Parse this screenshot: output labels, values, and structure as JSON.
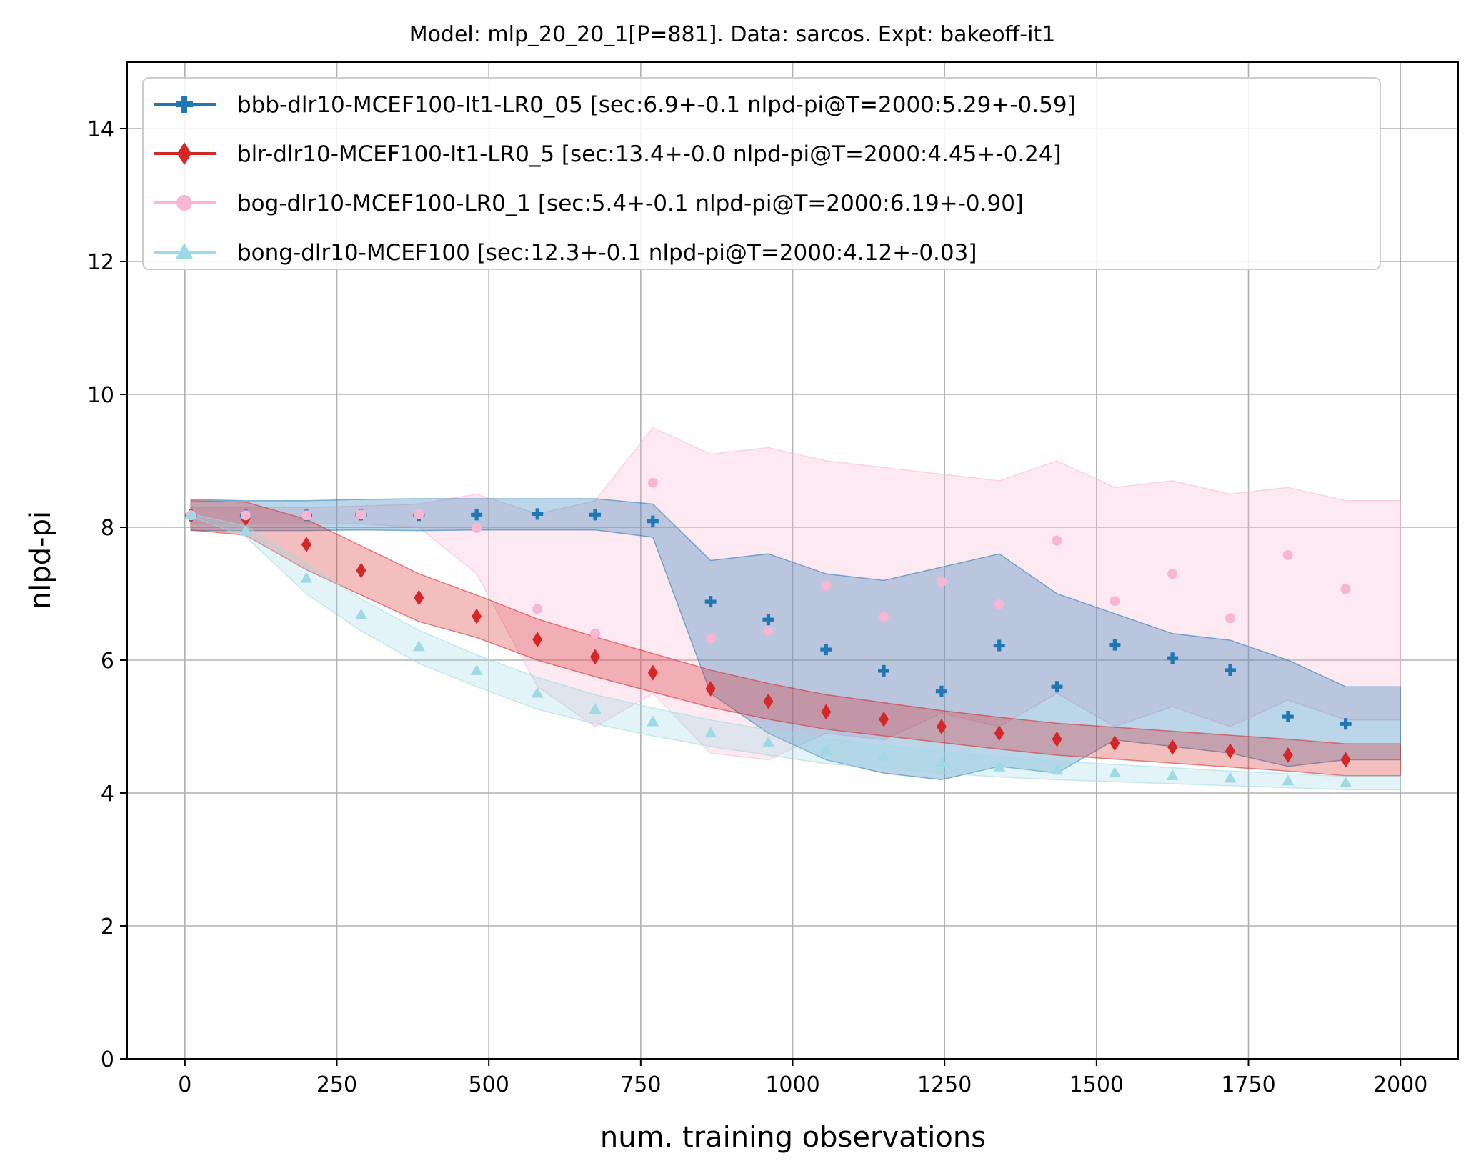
{
  "chart_data": {
    "type": "scatter",
    "title": "Model: mlp_20_20_1[P=881]. Data: sarcos. Expt: bakeoff-it1",
    "xlabel": "num. training observations",
    "ylabel": "nlpd-pi",
    "xlim": [
      -95,
      2095
    ],
    "ylim": [
      0,
      15
    ],
    "xticks": [
      0,
      250,
      500,
      750,
      1000,
      1250,
      1500,
      1750,
      2000
    ],
    "yticks": [
      0,
      2,
      4,
      6,
      8,
      10,
      12,
      14
    ],
    "grid": true,
    "legend_position": "top-left",
    "series": [
      {
        "name": "bbb-dlr10-MCEF100-It1-LR0_05 [sec:6.9+-0.1 nlpd-pi@T=2000:5.29+-0.59]",
        "color": "#1f77b4",
        "marker": "plus",
        "x": [
          10,
          100,
          200,
          290,
          385,
          480,
          580,
          675,
          770,
          865,
          960,
          1055,
          1150,
          1245,
          1340,
          1435,
          1530,
          1625,
          1720,
          1815,
          1910
        ],
        "y": [
          8.18,
          8.18,
          8.18,
          8.19,
          8.18,
          8.19,
          8.2,
          8.19,
          8.09,
          6.88,
          6.61,
          6.16,
          5.84,
          5.53,
          6.22,
          5.6,
          6.23,
          6.03,
          5.85,
          5.15,
          5.04
        ],
        "band_upper": [
          8.42,
          8.4,
          8.4,
          8.42,
          8.43,
          8.43,
          8.43,
          8.43,
          8.35,
          7.5,
          7.6,
          7.3,
          7.2,
          7.4,
          7.6,
          7.0,
          6.7,
          6.4,
          6.3,
          6.0,
          5.6
        ],
        "band_lower": [
          7.95,
          7.95,
          7.95,
          7.96,
          7.95,
          7.96,
          7.96,
          7.96,
          7.85,
          5.5,
          4.9,
          4.5,
          4.3,
          4.2,
          4.4,
          4.3,
          4.8,
          4.7,
          4.6,
          4.4,
          4.5
        ]
      },
      {
        "name": "blr-dlr10-MCEF100-It1-LR0_5 [sec:13.4+-0.0 nlpd-pi@T=2000:4.45+-0.24]",
        "color": "#d62728",
        "marker": "diamond",
        "x": [
          10,
          100,
          200,
          290,
          385,
          480,
          580,
          675,
          770,
          865,
          960,
          1055,
          1150,
          1245,
          1340,
          1435,
          1530,
          1625,
          1720,
          1815,
          1910
        ],
        "y": [
          8.18,
          8.13,
          7.74,
          7.35,
          6.94,
          6.66,
          6.31,
          6.05,
          5.81,
          5.57,
          5.38,
          5.22,
          5.11,
          5.0,
          4.9,
          4.81,
          4.75,
          4.69,
          4.63,
          4.57,
          4.5
        ],
        "band_upper": [
          8.4,
          8.38,
          8.12,
          7.72,
          7.3,
          6.98,
          6.62,
          6.35,
          6.1,
          5.85,
          5.65,
          5.48,
          5.36,
          5.24,
          5.14,
          5.05,
          4.99,
          4.93,
          4.87,
          4.81,
          4.74
        ],
        "band_lower": [
          7.96,
          7.88,
          7.36,
          6.98,
          6.58,
          6.34,
          6.0,
          5.75,
          5.52,
          5.29,
          5.11,
          4.96,
          4.86,
          4.76,
          4.66,
          4.57,
          4.51,
          4.45,
          4.39,
          4.33,
          4.26
        ]
      },
      {
        "name": "bog-dlr10-MCEF100-LR0_1 [sec:5.4+-0.1 nlpd-pi@T=2000:6.19+-0.90]",
        "color": "#f7b6d2",
        "marker": "circle",
        "x": [
          10,
          100,
          200,
          290,
          385,
          480,
          580,
          675,
          770,
          865,
          960,
          1055,
          1150,
          1245,
          1340,
          1435,
          1530,
          1625,
          1720,
          1815,
          1910
        ],
        "y": [
          8.18,
          8.18,
          8.18,
          8.19,
          8.2,
          7.99,
          6.77,
          6.4,
          8.67,
          6.33,
          6.44,
          7.12,
          6.65,
          7.18,
          6.84,
          7.8,
          6.89,
          7.3,
          6.63,
          7.58,
          7.07
        ],
        "band_upper": [
          8.3,
          8.3,
          8.3,
          8.32,
          8.35,
          8.5,
          8.2,
          8.4,
          9.5,
          9.1,
          9.2,
          9.0,
          8.9,
          8.8,
          8.7,
          9.0,
          8.6,
          8.7,
          8.5,
          8.6,
          8.4
        ],
        "band_lower": [
          8.05,
          8.05,
          8.05,
          8.05,
          8.0,
          7.3,
          5.6,
          5.0,
          5.5,
          4.6,
          4.5,
          4.9,
          4.8,
          5.2,
          5.0,
          5.5,
          5.0,
          5.3,
          5.0,
          5.4,
          5.1
        ]
      },
      {
        "name": "bong-dlr10-MCEF100 [sec:12.3+-0.1 nlpd-pi@T=2000:4.12+-0.03]",
        "color": "#9edae5",
        "marker": "triangle",
        "x": [
          10,
          100,
          200,
          290,
          385,
          480,
          580,
          675,
          770,
          865,
          960,
          1055,
          1150,
          1245,
          1340,
          1435,
          1530,
          1625,
          1720,
          1815,
          1910
        ],
        "y": [
          8.18,
          7.94,
          7.23,
          6.68,
          6.2,
          5.84,
          5.5,
          5.26,
          5.07,
          4.9,
          4.76,
          4.63,
          4.55,
          4.46,
          4.39,
          4.34,
          4.3,
          4.26,
          4.22,
          4.18,
          4.15
        ],
        "band_upper": [
          8.2,
          8.02,
          7.45,
          6.92,
          6.45,
          6.08,
          5.74,
          5.48,
          5.28,
          5.1,
          4.95,
          4.82,
          4.72,
          4.62,
          4.54,
          4.48,
          4.43,
          4.38,
          4.33,
          4.29,
          4.25
        ],
        "band_lower": [
          8.16,
          7.86,
          7.0,
          6.44,
          5.95,
          5.6,
          5.26,
          5.04,
          4.86,
          4.7,
          4.57,
          4.44,
          4.38,
          4.3,
          4.24,
          4.2,
          4.17,
          4.14,
          4.11,
          4.08,
          4.05
        ]
      }
    ]
  }
}
